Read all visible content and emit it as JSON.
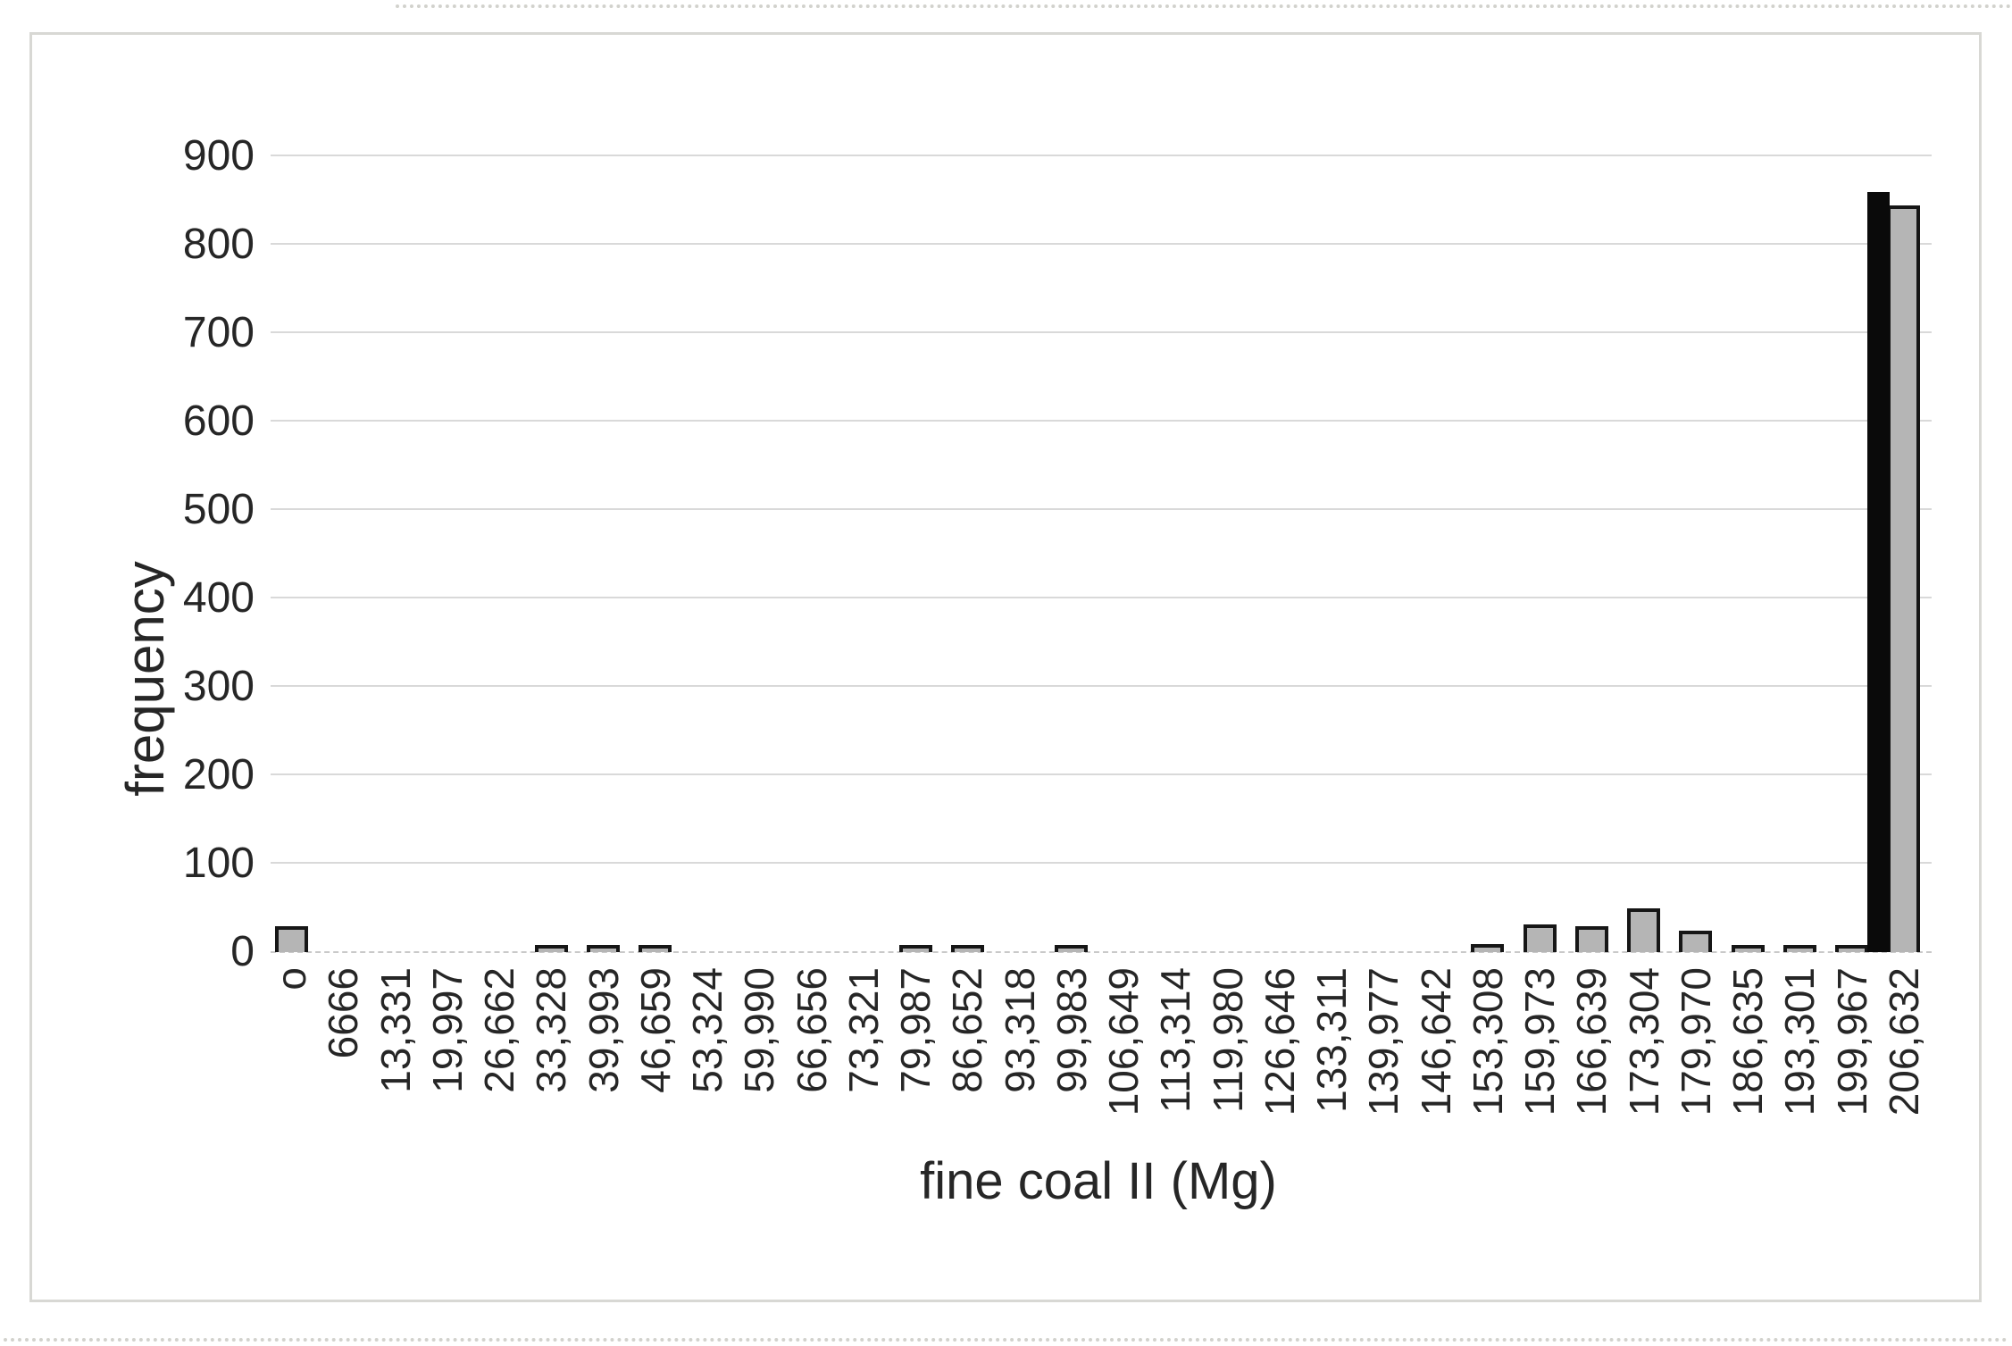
{
  "chart_data": {
    "type": "bar",
    "title": "",
    "xlabel": "fine coal II (Mg)",
    "ylabel": "frequency",
    "categories": [
      "o",
      "6666",
      "13,331",
      "19,997",
      "26,662",
      "33,328",
      "39,993",
      "46,659",
      "53,324",
      "59,990",
      "66,656",
      "73,321",
      "79,987",
      "86,652",
      "93,318",
      "99,983",
      "106,649",
      "113,314",
      "119,980",
      "126,646",
      "133,311",
      "139,977",
      "146,642",
      "153,308",
      "159,973",
      "166,639",
      "173,304",
      "179,970",
      "186,635",
      "193,301",
      "199,967",
      "206,632"
    ],
    "series": [
      {
        "name": "black",
        "color": "#0a0a0a",
        "values": [
          0,
          0,
          0,
          0,
          0,
          0,
          0,
          0,
          0,
          0,
          0,
          0,
          0,
          0,
          0,
          0,
          0,
          0,
          0,
          0,
          0,
          0,
          0,
          0,
          0,
          0,
          0,
          0,
          0,
          0,
          0,
          860
        ]
      },
      {
        "name": "gray",
        "color": "#b5b5b5",
        "values": [
          25,
          0,
          0,
          0,
          0,
          4,
          4,
          4,
          0,
          0,
          0,
          0,
          4,
          4,
          0,
          4,
          0,
          0,
          0,
          0,
          0,
          0,
          0,
          5,
          27,
          25,
          45,
          20,
          4,
          4,
          4,
          840
        ]
      }
    ],
    "ylim": [
      0,
      900
    ],
    "ytick_step": 100,
    "y_ticks": [
      0,
      100,
      200,
      300,
      400,
      500,
      600,
      700,
      800,
      900
    ],
    "grid": true,
    "legend": "none",
    "colors": {
      "gray_bar_fill": "#b5b5b5",
      "bar_outline": "#161616",
      "black_bar": "#0a0a0a",
      "gridline": "#d9d9d9",
      "baseline": "#c9c9c9",
      "text": "#262626",
      "frame_border": "#d8d8d4"
    }
  }
}
